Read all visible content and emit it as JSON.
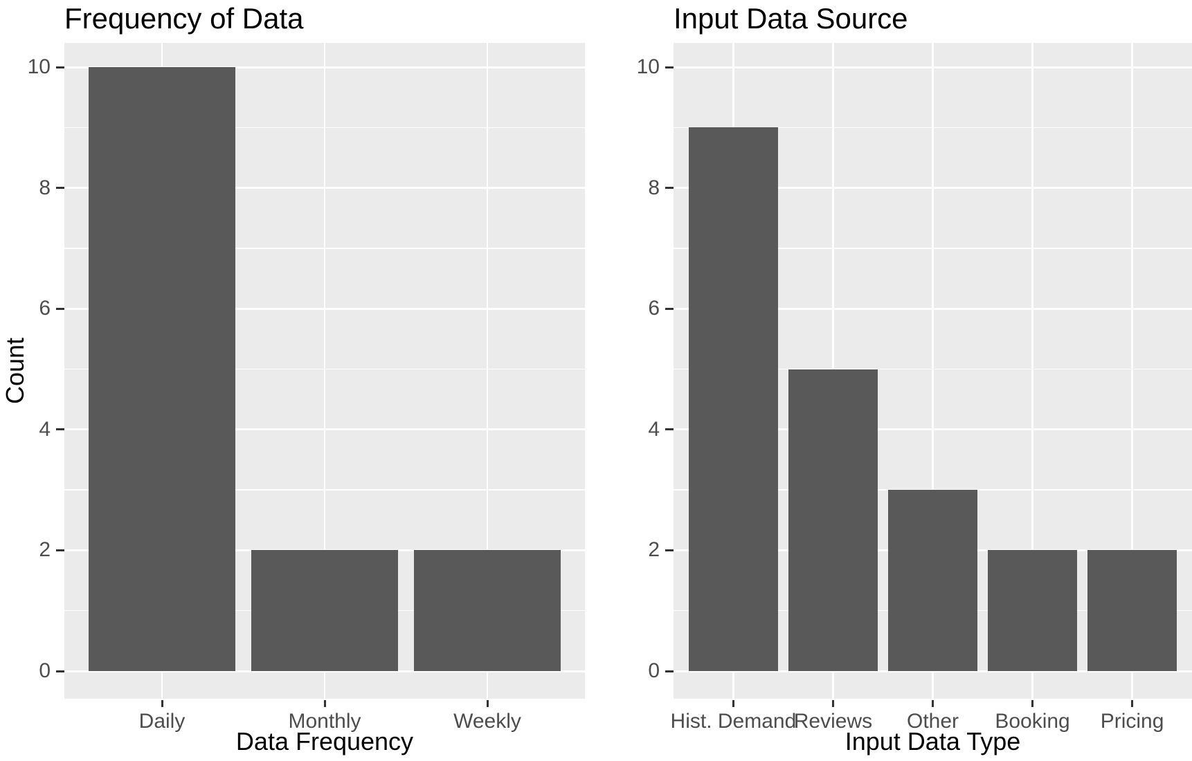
{
  "style": {
    "background": "#FFFFFF",
    "panel_background": "#EBEBEB",
    "bar_fill": "#595959",
    "gridline_color": "#FFFFFF",
    "tick_mark_color": "#333333",
    "tick_label_color": "#4D4D4D",
    "axis_title_color": "#000000",
    "title_color": "#000000"
  },
  "chart_data": [
    {
      "type": "bar",
      "title": "Frequency of Data",
      "xlabel": "Data Frequency",
      "ylabel": "Count",
      "categories": [
        "Daily",
        "Monthly",
        "Weekly"
      ],
      "values": [
        10,
        2,
        2
      ],
      "ylim": [
        0,
        10
      ],
      "yticks": [
        0,
        2,
        4,
        6,
        8,
        10
      ],
      "minor_gridlines": [
        1,
        3,
        5,
        7,
        9
      ],
      "grid": "on",
      "legend": "none"
    },
    {
      "type": "bar",
      "title": "Input Data Source",
      "xlabel": "Input Data Type",
      "ylabel": "",
      "categories": [
        "Hist. Demand",
        "Reviews",
        "Other",
        "Booking",
        "Pricing"
      ],
      "values": [
        9,
        5,
        3,
        2,
        2
      ],
      "ylim": [
        0,
        10
      ],
      "yticks": [
        0,
        2,
        4,
        6,
        8,
        10
      ],
      "minor_gridlines": [
        1,
        3,
        5,
        7,
        9
      ],
      "grid": "on",
      "legend": "none"
    }
  ]
}
